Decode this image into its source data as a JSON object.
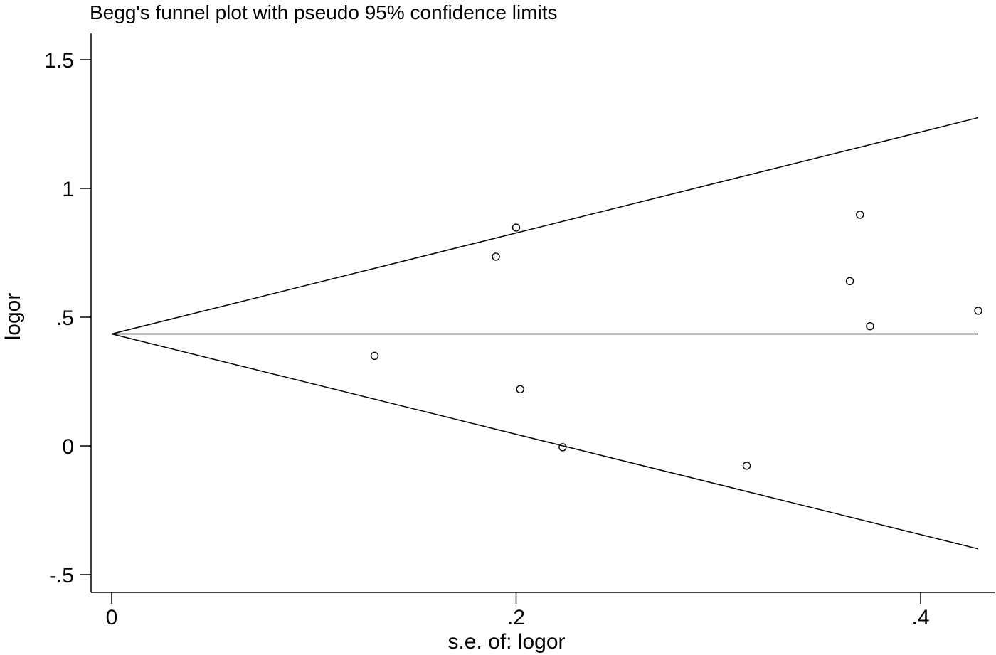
{
  "chart_data": {
    "type": "scatter",
    "title": "Begg's funnel plot with pseudo 95% confidence limits",
    "xlabel": "s.e. of: logor",
    "ylabel": "logor",
    "xlim": [
      0,
      0.43
    ],
    "ylim": [
      -0.55,
      1.6
    ],
    "x_ticks": [
      {
        "value": 0,
        "label": "0"
      },
      {
        "value": 0.2,
        "label": ".2"
      },
      {
        "value": 0.4,
        "label": ".4"
      }
    ],
    "y_ticks": [
      {
        "value": 1.5,
        "label": "1.5"
      },
      {
        "value": 1,
        "label": "1"
      },
      {
        "value": 0.5,
        "label": ".5"
      },
      {
        "value": 0,
        "label": "0"
      },
      {
        "value": -0.5,
        "label": "-.5"
      }
    ],
    "pooled_estimate": 0.435,
    "limits": {
      "x_start": 0,
      "x_end": 0.4285,
      "upper_end": 1.275,
      "lower_end": -0.4
    },
    "points": [
      {
        "x": 0.13,
        "y": 0.35
      },
      {
        "x": 0.19,
        "y": 0.735
      },
      {
        "x": 0.2,
        "y": 0.848
      },
      {
        "x": 0.202,
        "y": 0.22
      },
      {
        "x": 0.223,
        "y": -0.005
      },
      {
        "x": 0.314,
        "y": -0.077
      },
      {
        "x": 0.365,
        "y": 0.64
      },
      {
        "x": 0.37,
        "y": 0.898
      },
      {
        "x": 0.375,
        "y": 0.465
      },
      {
        "x": 0.4285,
        "y": 0.525
      }
    ],
    "grid": false,
    "legend": "none"
  }
}
